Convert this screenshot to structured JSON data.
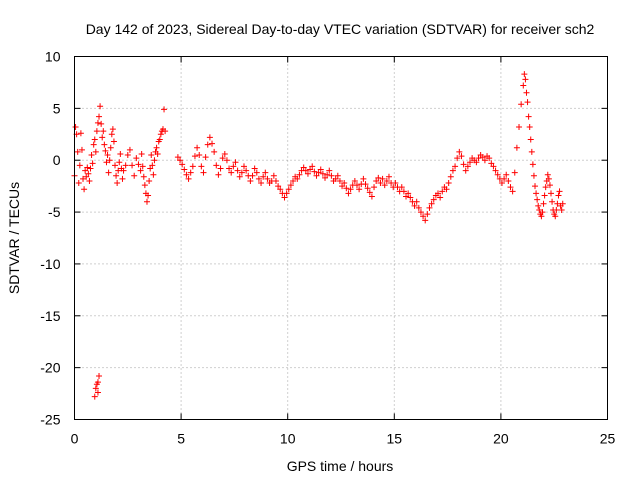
{
  "chart_data": {
    "type": "scatter",
    "title": "Day 142 of 2023, Sidereal Day-to-day VTEC variation (SDTVAR) for receiver sch2",
    "xlabel": "GPS time / hours",
    "ylabel": "SDTVAR / TECUs",
    "xlim": [
      0,
      25
    ],
    "ylim": [
      -25,
      10
    ],
    "xticks": [
      0,
      5,
      10,
      15,
      20,
      25
    ],
    "yticks": [
      -25,
      -20,
      -15,
      -10,
      -5,
      0,
      5,
      10
    ],
    "xtick_labels": [
      "0",
      "5",
      "10",
      "15",
      "20",
      "25"
    ],
    "ytick_labels": [
      "-25",
      "-20",
      "-15",
      "-10",
      "-5",
      "0",
      "5",
      "10"
    ],
    "grid": true,
    "marker": "+",
    "marker_color": "#ff0000",
    "series": [
      {
        "name": "sch2",
        "points": [
          [
            0.0,
            -1.5
          ],
          [
            0.05,
            3.2
          ],
          [
            0.1,
            2.5
          ],
          [
            0.15,
            0.8
          ],
          [
            0.2,
            -2.2
          ],
          [
            0.25,
            -0.5
          ],
          [
            0.3,
            2.6
          ],
          [
            0.35,
            1.0
          ],
          [
            0.4,
            -1.8
          ],
          [
            0.45,
            -2.8
          ],
          [
            0.5,
            -1.0
          ],
          [
            0.55,
            -1.6
          ],
          [
            0.6,
            -0.7
          ],
          [
            0.65,
            -1.3
          ],
          [
            0.7,
            -2.0
          ],
          [
            0.75,
            -0.8
          ],
          [
            0.8,
            0.5
          ],
          [
            0.85,
            -0.3
          ],
          [
            0.9,
            1.5
          ],
          [
            0.95,
            2.0
          ],
          [
            1.0,
            0.8
          ],
          [
            1.05,
            2.8
          ],
          [
            1.1,
            3.6
          ],
          [
            1.15,
            4.2
          ],
          [
            1.2,
            5.2
          ],
          [
            1.25,
            3.5
          ],
          [
            1.3,
            2.2
          ],
          [
            1.35,
            2.8
          ],
          [
            1.4,
            1.5
          ],
          [
            1.45,
            0.9
          ],
          [
            1.5,
            -0.2
          ],
          [
            1.55,
            0.5
          ],
          [
            1.6,
            -1.2
          ],
          [
            1.65,
            0.0
          ],
          [
            1.7,
            1.2
          ],
          [
            1.75,
            2.5
          ],
          [
            1.8,
            3.0
          ],
          [
            1.85,
            1.8
          ],
          [
            1.9,
            -0.5
          ],
          [
            1.95,
            -1.5
          ],
          [
            2.0,
            -2.2
          ],
          [
            2.05,
            -1.0
          ],
          [
            2.1,
            -0.2
          ],
          [
            2.15,
            0.6
          ],
          [
            2.2,
            -0.8
          ],
          [
            2.25,
            -1.8
          ],
          [
            2.3,
            -1.0
          ],
          [
            2.4,
            -0.5
          ],
          [
            2.5,
            0.5
          ],
          [
            2.6,
            1.0
          ],
          [
            2.7,
            -0.5
          ],
          [
            2.8,
            -1.5
          ],
          [
            2.9,
            0.2
          ],
          [
            3.0,
            -0.4
          ],
          [
            3.1,
            -1.0
          ],
          [
            3.15,
            0.6
          ],
          [
            3.2,
            -0.6
          ],
          [
            3.25,
            -1.6
          ],
          [
            3.3,
            -2.4
          ],
          [
            3.35,
            -3.2
          ],
          [
            3.4,
            -4.0
          ],
          [
            3.45,
            -3.4
          ],
          [
            3.5,
            -2.0
          ],
          [
            3.55,
            -0.8
          ],
          [
            3.6,
            0.5
          ],
          [
            3.65,
            -0.5
          ],
          [
            3.7,
            -1.4
          ],
          [
            3.75,
            0.0
          ],
          [
            3.8,
            0.8
          ],
          [
            3.85,
            1.2
          ],
          [
            3.9,
            0.6
          ],
          [
            3.95,
            1.8
          ],
          [
            4.0,
            2.0
          ],
          [
            4.05,
            2.5
          ],
          [
            4.1,
            2.8
          ],
          [
            4.15,
            3.0
          ],
          [
            4.2,
            4.9
          ],
          [
            4.25,
            2.8
          ],
          [
            0.95,
            -22.8
          ],
          [
            1.0,
            -22.0
          ],
          [
            1.05,
            -21.6
          ],
          [
            1.1,
            -21.4
          ],
          [
            1.15,
            -20.8
          ],
          [
            1.1,
            -22.4
          ],
          [
            4.85,
            0.3
          ],
          [
            4.95,
            0.0
          ],
          [
            5.05,
            -0.4
          ],
          [
            5.15,
            -0.9
          ],
          [
            5.25,
            -1.4
          ],
          [
            5.35,
            -1.8
          ],
          [
            5.45,
            -1.2
          ],
          [
            5.55,
            -0.6
          ],
          [
            5.65,
            0.4
          ],
          [
            5.75,
            1.2
          ],
          [
            5.85,
            0.5
          ],
          [
            5.95,
            -0.6
          ],
          [
            6.05,
            -1.2
          ],
          [
            6.15,
            0.3
          ],
          [
            6.25,
            1.5
          ],
          [
            6.35,
            2.2
          ],
          [
            6.45,
            1.6
          ],
          [
            6.55,
            0.8
          ],
          [
            6.65,
            -0.5
          ],
          [
            6.75,
            -1.4
          ],
          [
            6.85,
            -0.8
          ],
          [
            6.95,
            0.2
          ],
          [
            7.05,
            0.6
          ],
          [
            7.15,
            0.0
          ],
          [
            7.25,
            -0.8
          ],
          [
            7.35,
            -1.2
          ],
          [
            7.45,
            -0.6
          ],
          [
            7.55,
            -0.2
          ],
          [
            7.65,
            -1.0
          ],
          [
            7.75,
            -1.6
          ],
          [
            7.85,
            -1.2
          ],
          [
            7.95,
            -0.6
          ],
          [
            8.05,
            -1.0
          ],
          [
            8.15,
            -1.5
          ],
          [
            8.25,
            -2.0
          ],
          [
            8.35,
            -1.5
          ],
          [
            8.45,
            -0.8
          ],
          [
            8.55,
            -1.2
          ],
          [
            8.65,
            -1.8
          ],
          [
            8.75,
            -2.2
          ],
          [
            8.85,
            -1.6
          ],
          [
            8.95,
            -1.2
          ],
          [
            9.05,
            -1.8
          ],
          [
            9.15,
            -2.2
          ],
          [
            9.25,
            -2.0
          ],
          [
            9.35,
            -1.5
          ],
          [
            9.45,
            -2.0
          ],
          [
            9.55,
            -2.5
          ],
          [
            9.65,
            -2.8
          ],
          [
            9.75,
            -3.2
          ],
          [
            9.85,
            -3.6
          ],
          [
            9.95,
            -3.2
          ],
          [
            10.05,
            -2.8
          ],
          [
            10.15,
            -2.4
          ],
          [
            10.25,
            -2.0
          ],
          [
            10.35,
            -1.6
          ],
          [
            10.45,
            -1.8
          ],
          [
            10.55,
            -1.4
          ],
          [
            10.65,
            -1.0
          ],
          [
            10.75,
            -0.7
          ],
          [
            10.85,
            -1.0
          ],
          [
            10.95,
            -1.3
          ],
          [
            11.05,
            -0.9
          ],
          [
            11.15,
            -0.6
          ],
          [
            11.25,
            -1.1
          ],
          [
            11.35,
            -1.5
          ],
          [
            11.45,
            -1.2
          ],
          [
            11.55,
            -0.9
          ],
          [
            11.65,
            -1.3
          ],
          [
            11.75,
            -1.7
          ],
          [
            11.85,
            -1.4
          ],
          [
            11.95,
            -1.0
          ],
          [
            12.05,
            -1.5
          ],
          [
            12.15,
            -2.0
          ],
          [
            12.25,
            -1.8
          ],
          [
            12.35,
            -1.5
          ],
          [
            12.45,
            -2.0
          ],
          [
            12.55,
            -2.5
          ],
          [
            12.65,
            -2.2
          ],
          [
            12.75,
            -2.7
          ],
          [
            12.85,
            -3.2
          ],
          [
            12.95,
            -2.8
          ],
          [
            13.05,
            -2.4
          ],
          [
            13.15,
            -2.0
          ],
          [
            13.25,
            -2.4
          ],
          [
            13.35,
            -2.8
          ],
          [
            13.45,
            -2.3
          ],
          [
            13.55,
            -1.8
          ],
          [
            13.65,
            -2.3
          ],
          [
            13.75,
            -2.7
          ],
          [
            13.85,
            -3.1
          ],
          [
            13.95,
            -3.5
          ],
          [
            14.05,
            -2.6
          ],
          [
            14.15,
            -2.0
          ],
          [
            14.25,
            -1.7
          ],
          [
            14.35,
            -2.2
          ],
          [
            14.45,
            -1.8
          ],
          [
            14.55,
            -2.4
          ],
          [
            14.65,
            -2.0
          ],
          [
            14.75,
            -1.6
          ],
          [
            14.85,
            -2.2
          ],
          [
            14.95,
            -2.6
          ],
          [
            15.05,
            -2.2
          ],
          [
            15.15,
            -2.6
          ],
          [
            15.25,
            -3.0
          ],
          [
            15.35,
            -2.6
          ],
          [
            15.45,
            -3.0
          ],
          [
            15.55,
            -3.5
          ],
          [
            15.65,
            -3.2
          ],
          [
            15.75,
            -3.6
          ],
          [
            15.85,
            -4.0
          ],
          [
            15.95,
            -4.4
          ],
          [
            16.05,
            -4.0
          ],
          [
            16.15,
            -4.6
          ],
          [
            16.25,
            -5.0
          ],
          [
            16.35,
            -5.4
          ],
          [
            16.45,
            -5.8
          ],
          [
            16.55,
            -5.2
          ],
          [
            16.65,
            -4.6
          ],
          [
            16.75,
            -4.2
          ],
          [
            16.85,
            -3.8
          ],
          [
            16.95,
            -3.4
          ],
          [
            17.05,
            -3.2
          ],
          [
            17.15,
            -3.6
          ],
          [
            17.25,
            -3.0
          ],
          [
            17.35,
            -2.6
          ],
          [
            17.45,
            -2.8
          ],
          [
            17.55,
            -2.2
          ],
          [
            17.65,
            -1.6
          ],
          [
            17.75,
            -1.0
          ],
          [
            17.85,
            -0.6
          ],
          [
            17.95,
            0.2
          ],
          [
            18.05,
            0.8
          ],
          [
            18.15,
            0.4
          ],
          [
            18.25,
            -0.4
          ],
          [
            18.35,
            -1.0
          ],
          [
            18.45,
            -0.6
          ],
          [
            18.55,
            -0.2
          ],
          [
            18.65,
            0.2
          ],
          [
            18.75,
            0.0
          ],
          [
            18.85,
            -0.2
          ],
          [
            18.95,
            0.2
          ],
          [
            19.05,
            0.5
          ],
          [
            19.15,
            0.3
          ],
          [
            19.25,
            0.0
          ],
          [
            19.35,
            0.4
          ],
          [
            19.45,
            0.2
          ],
          [
            19.55,
            -0.3
          ],
          [
            19.65,
            -0.6
          ],
          [
            19.75,
            -1.0
          ],
          [
            19.85,
            -1.4
          ],
          [
            19.95,
            -1.8
          ],
          [
            20.05,
            -2.2
          ],
          [
            20.15,
            -1.8
          ],
          [
            20.25,
            -1.4
          ],
          [
            20.35,
            -2.0
          ],
          [
            20.45,
            -2.6
          ],
          [
            20.55,
            -3.0
          ],
          [
            20.65,
            -1.2
          ],
          [
            20.75,
            1.2
          ],
          [
            20.85,
            3.2
          ],
          [
            20.95,
            5.4
          ],
          [
            21.05,
            7.2
          ],
          [
            21.1,
            8.3
          ],
          [
            21.15,
            7.8
          ],
          [
            21.2,
            6.5
          ],
          [
            21.25,
            5.6
          ],
          [
            21.3,
            4.2
          ],
          [
            21.35,
            3.2
          ],
          [
            21.4,
            2.0
          ],
          [
            21.45,
            0.8
          ],
          [
            21.5,
            -0.4
          ],
          [
            21.55,
            -1.5
          ],
          [
            21.6,
            -2.5
          ],
          [
            21.65,
            -3.2
          ],
          [
            21.7,
            -3.8
          ],
          [
            21.75,
            -4.4
          ],
          [
            21.8,
            -4.8
          ],
          [
            21.85,
            -5.2
          ],
          [
            21.9,
            -5.4
          ],
          [
            21.95,
            -5.0
          ],
          [
            22.0,
            -4.2
          ],
          [
            22.05,
            -3.4
          ],
          [
            22.1,
            -2.6
          ],
          [
            22.15,
            -2.0
          ],
          [
            22.2,
            -1.4
          ],
          [
            22.25,
            -1.8
          ],
          [
            22.3,
            -2.4
          ],
          [
            22.35,
            -3.2
          ],
          [
            22.4,
            -4.0
          ],
          [
            22.45,
            -4.8
          ],
          [
            22.5,
            -5.2
          ],
          [
            22.55,
            -5.4
          ],
          [
            22.6,
            -4.8
          ],
          [
            22.65,
            -4.2
          ],
          [
            22.7,
            -3.4
          ],
          [
            22.75,
            -3.0
          ],
          [
            22.8,
            -4.4
          ],
          [
            22.85,
            -4.8
          ],
          [
            22.9,
            -4.2
          ]
        ]
      }
    ]
  }
}
